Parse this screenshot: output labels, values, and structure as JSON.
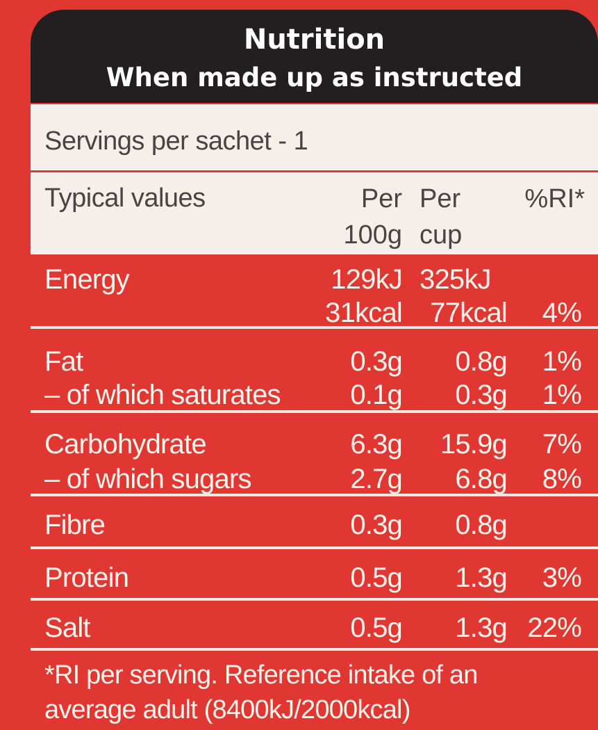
{
  "header": {
    "title": "Nutrition",
    "subtitle": "When made up as instructed"
  },
  "servings": "Servings per sachet - 1",
  "columns": {
    "label": "Typical values",
    "per100_line1": "Per",
    "per100_line2": "100g",
    "percup_line1": "Per",
    "percup_line2": "cup",
    "ri": "%RI*"
  },
  "rows": {
    "energy": {
      "name": "Energy",
      "per100_kj": "129kJ",
      "per100_kcal": "31kcal",
      "percup_kj": "325kJ",
      "percup_kcal": "77kcal",
      "ri": "4%"
    },
    "fat": {
      "name": "Fat",
      "per100": "0.3g",
      "percup": "0.8g",
      "ri": "1%"
    },
    "saturates": {
      "name": "– of which saturates",
      "per100": "0.1g",
      "percup": "0.3g",
      "ri": "1%"
    },
    "carbohydrate": {
      "name": "Carbohydrate",
      "per100": "6.3g",
      "percup": "15.9g",
      "ri": "7%"
    },
    "sugars": {
      "name": "– of which sugars",
      "per100": "2.7g",
      "percup": "6.8g",
      "ri": "8%"
    },
    "fibre": {
      "name": "Fibre",
      "per100": "0.3g",
      "percup": "0.8g"
    },
    "protein": {
      "name": "Protein",
      "per100": "0.5g",
      "percup": "1.3g",
      "ri": "3%"
    },
    "salt": {
      "name": "Salt",
      "per100": "0.5g",
      "percup": "1.3g",
      "ri": "22%"
    }
  },
  "footnote": {
    "line1": "*RI per serving. Reference intake of an",
    "line2": "average adult (8400kJ/2000kcal)"
  },
  "colors": {
    "background": "#e13732",
    "header": "#231f20",
    "band": "#f4efe9",
    "text_light": "#fbf3ec",
    "text_dark": "#4a4245"
  }
}
